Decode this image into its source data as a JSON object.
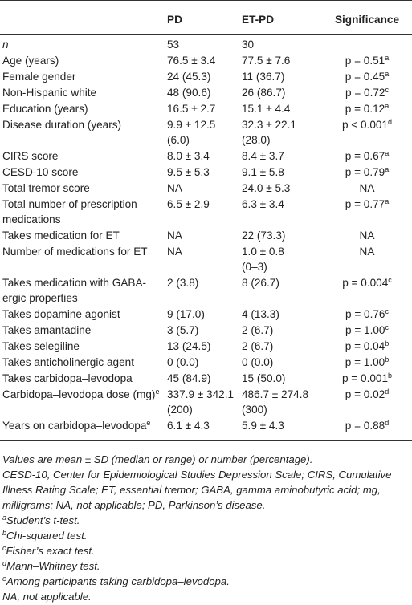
{
  "table": {
    "headers": [
      "",
      "PD",
      "ET-PD",
      "Significance"
    ],
    "rows": [
      {
        "label": "n",
        "pd": [
          "53"
        ],
        "etpd": [
          "30"
        ],
        "sig": null,
        "sig_sup": null
      },
      {
        "label": "Age (years)",
        "pd": [
          "76.5 ± 3.4"
        ],
        "etpd": [
          "77.5 ± 7.6"
        ],
        "sig": "p = 0.51",
        "sig_sup": "a"
      },
      {
        "label": "Female gender",
        "pd": [
          "24 (45.3)"
        ],
        "etpd": [
          "11 (36.7)"
        ],
        "sig": "p = 0.45",
        "sig_sup": "a"
      },
      {
        "label": "Non-Hispanic white",
        "pd": [
          "48 (90.6)"
        ],
        "etpd": [
          "26 (86.7)"
        ],
        "sig": "p = 0.72",
        "sig_sup": "c"
      },
      {
        "label": "Education (years)",
        "pd": [
          "16.5 ± 2.7"
        ],
        "etpd": [
          "15.1 ± 4.4"
        ],
        "sig": "p = 0.12",
        "sig_sup": "a"
      },
      {
        "label": "Disease duration (years)",
        "pd": [
          "9.9 ± 12.5",
          "(6.0)"
        ],
        "etpd": [
          "32.3 ± 22.1",
          "(28.0)"
        ],
        "sig": "p < 0.001",
        "sig_sup": "d"
      },
      {
        "label": "CIRS score",
        "pd": [
          "8.0 ± 3.4"
        ],
        "etpd": [
          "8.4 ± 3.7"
        ],
        "sig": "p = 0.67",
        "sig_sup": "a"
      },
      {
        "label": "CESD-10 score",
        "pd": [
          "9.5 ± 5.3"
        ],
        "etpd": [
          "9.1 ± 5.8"
        ],
        "sig": "p = 0.79",
        "sig_sup": "a"
      },
      {
        "label": "Total tremor score",
        "pd": [
          "NA"
        ],
        "etpd": [
          "24.0 ± 5.3"
        ],
        "sig": "NA",
        "sig_sup": null
      },
      {
        "label": "Total number of prescription medications",
        "pd": [
          "6.5 ± 2.9"
        ],
        "etpd": [
          "6.3 ± 3.4"
        ],
        "sig": "p = 0.77",
        "sig_sup": "a"
      },
      {
        "label": "Takes medication for ET",
        "pd": [
          "NA"
        ],
        "etpd": [
          "22 (73.3)"
        ],
        "sig": "NA",
        "sig_sup": null
      },
      {
        "label": "Number of medications for ET",
        "pd": [
          "NA"
        ],
        "etpd": [
          "1.0 ± 0.8",
          "(0–3)"
        ],
        "sig": "NA",
        "sig_sup": null
      },
      {
        "label": "Takes medication with GABA-ergic properties",
        "pd": [
          "2 (3.8)"
        ],
        "etpd": [
          "8 (26.7)"
        ],
        "sig": "p = 0.004",
        "sig_sup": "c"
      },
      {
        "label": "Takes dopamine agonist",
        "pd": [
          "9 (17.0)"
        ],
        "etpd": [
          "4 (13.3)"
        ],
        "sig": "p = 0.76",
        "sig_sup": "c"
      },
      {
        "label": "Takes amantadine",
        "pd": [
          "3 (5.7)"
        ],
        "etpd": [
          "2 (6.7)"
        ],
        "sig": "p = 1.00",
        "sig_sup": "c"
      },
      {
        "label": "Takes selegiline",
        "pd": [
          "13 (24.5)"
        ],
        "etpd": [
          "2 (6.7)"
        ],
        "sig": "p = 0.04",
        "sig_sup": "b"
      },
      {
        "label": "Takes anticholinergic agent",
        "pd": [
          "0 (0.0)"
        ],
        "etpd": [
          "0 (0.0)"
        ],
        "sig": "p = 1.00",
        "sig_sup": "b"
      },
      {
        "label": "Takes carbidopa–levodopa",
        "pd": [
          "45 (84.9)"
        ],
        "etpd": [
          "15 (50.0)"
        ],
        "sig": "p = 0.001",
        "sig_sup": "b"
      },
      {
        "label": "Carbidopa–levodopa dose (mg)",
        "label_sup": "e",
        "pd": [
          "337.9 ± 342.1",
          "(200)"
        ],
        "etpd": [
          "486.7 ± 274.8",
          "(300)"
        ],
        "sig": "p = 0.02",
        "sig_sup": "d"
      },
      {
        "label": "Years on carbidopa–levodopa",
        "label_sup": "e",
        "pd": [
          "6.1 ± 4.3"
        ],
        "etpd": [
          "5.9 ± 4.3"
        ],
        "sig": "p = 0.88",
        "sig_sup": "d"
      }
    ]
  },
  "notes": [
    {
      "sup": null,
      "text": "Values are mean ± SD (median or range) or number (percentage)."
    },
    {
      "sup": null,
      "text": "CESD-10, Center for Epidemiological Studies Depression Scale; CIRS, Cumulative Illness Rating Scale; ET, essential tremor; GABA, gamma aminobutyric acid; mg, milligrams; NA, not applicable; PD, Parkinson’s disease."
    },
    {
      "sup": "a",
      "text": "Student’s t-test."
    },
    {
      "sup": "b",
      "text": "Chi-squared test."
    },
    {
      "sup": "c",
      "text": "Fisher’s exact test."
    },
    {
      "sup": "d",
      "text": "Mann–Whitney test."
    },
    {
      "sup": "e",
      "text": "Among participants taking carbidopa–levodopa."
    },
    {
      "sup": null,
      "text": "NA, not applicable."
    }
  ]
}
